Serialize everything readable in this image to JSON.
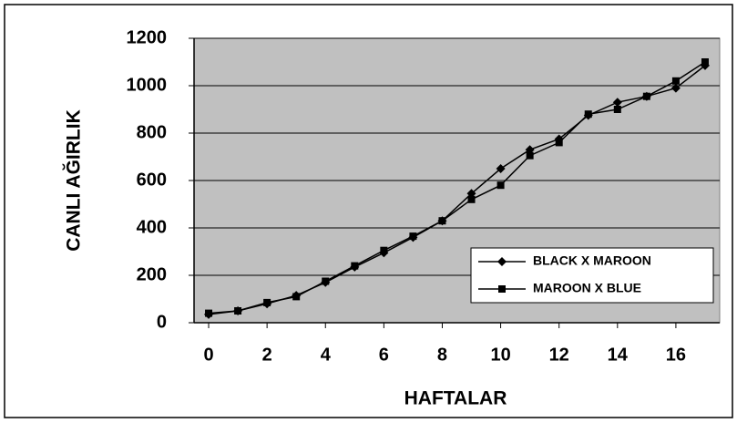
{
  "chart_data": {
    "type": "line",
    "x_label": "HAFTALAR",
    "y_label": "CANLI AĞIRLIK",
    "x": [
      0,
      1,
      2,
      3,
      4,
      5,
      6,
      7,
      8,
      9,
      10,
      11,
      12,
      13,
      14,
      15,
      16,
      17
    ],
    "xlim": [
      -0.5,
      17.5
    ],
    "xticks": [
      0,
      2,
      4,
      6,
      8,
      10,
      12,
      14,
      16
    ],
    "ylim": [
      0,
      1200
    ],
    "yticks": [
      0,
      200,
      400,
      600,
      800,
      1000,
      1200
    ],
    "grid": true,
    "legend": "lower right",
    "series": [
      {
        "name": "BLACK X MAROON",
        "color": "#000000",
        "marker": "diamond",
        "values": [
          35,
          50,
          80,
          115,
          170,
          235,
          295,
          360,
          430,
          545,
          650,
          730,
          775,
          875,
          930,
          955,
          990,
          1085
        ]
      },
      {
        "name": "MAROON X BLUE",
        "color": "#000000",
        "marker": "square",
        "values": [
          40,
          50,
          85,
          110,
          175,
          240,
          305,
          365,
          430,
          520,
          580,
          705,
          760,
          880,
          900,
          955,
          1020,
          1100
        ]
      }
    ]
  }
}
